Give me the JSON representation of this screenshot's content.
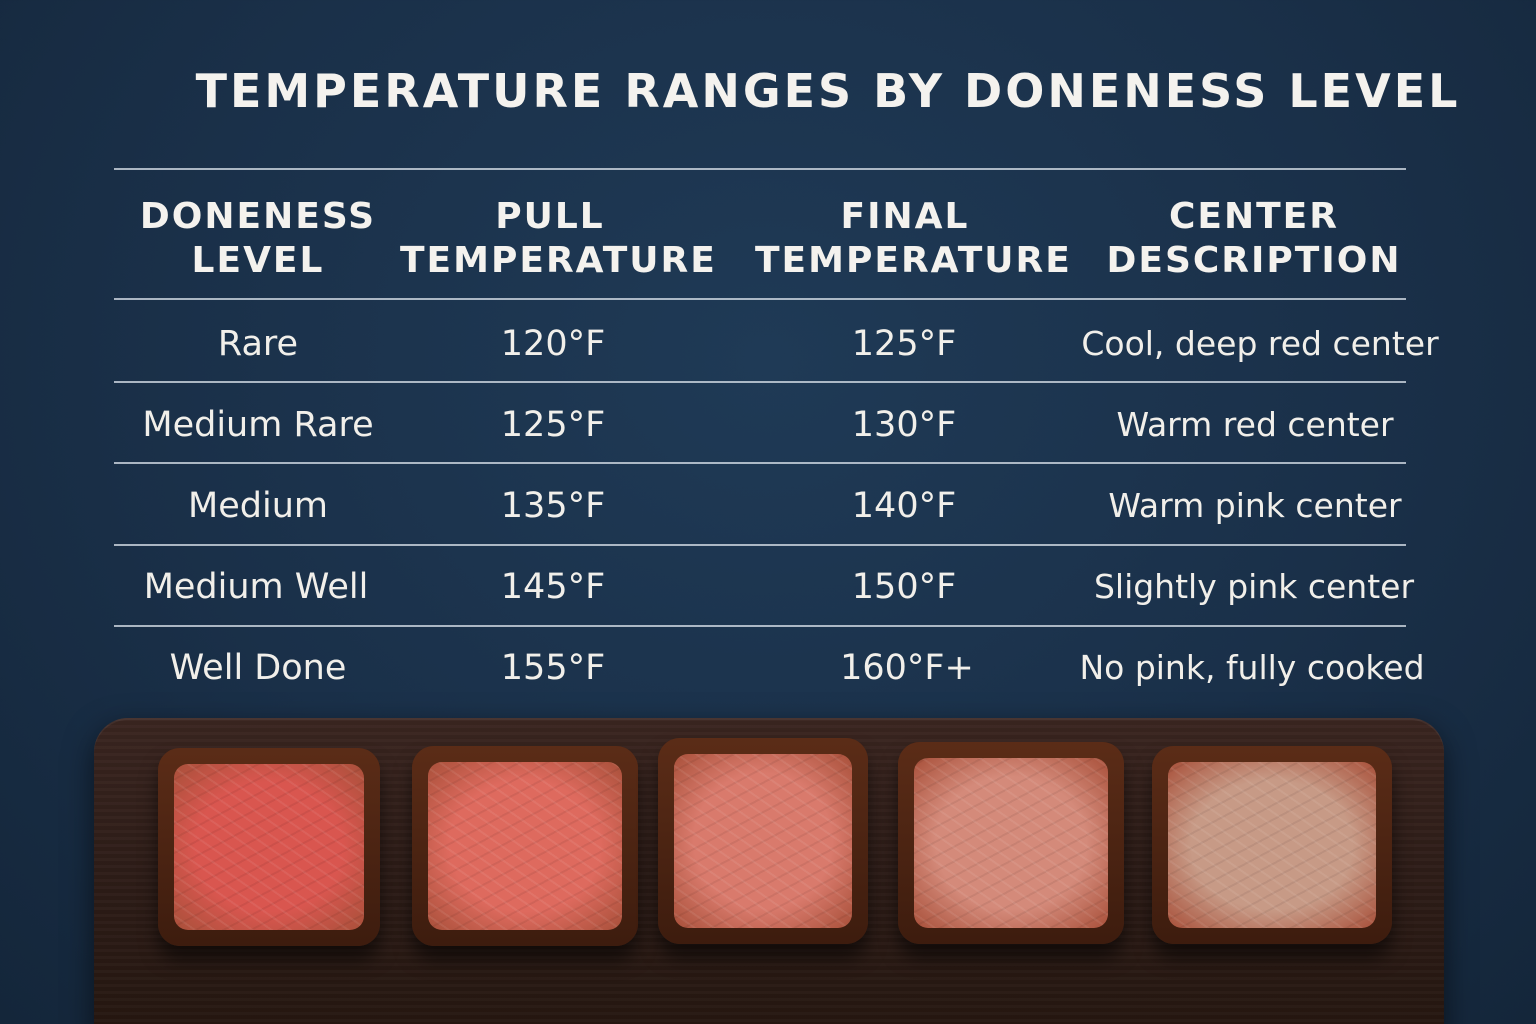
{
  "title": "TEMPERATURE RANGES BY DONENESS LEVEL",
  "table": {
    "headers": [
      [
        "DONENESS",
        "LEVEL"
      ],
      [
        "PULL",
        "TEMPERATURE"
      ],
      [
        "FINAL",
        "TEMPERATURE"
      ],
      [
        "CENTER",
        "DESCRIPTION"
      ]
    ],
    "rows": [
      [
        "Rare",
        "120°F",
        "125°F",
        "Cool, deep red center"
      ],
      [
        "Medium Rare",
        "125°F",
        "130°F",
        "Warm red center"
      ],
      [
        "Medium",
        "135°F",
        "140°F",
        "Warm pink center"
      ],
      [
        "Medium Well",
        "145°F",
        "150°F",
        "Slightly pink center"
      ],
      [
        "Well Done",
        "155°F",
        "160°F+",
        "No pink, fully cooked"
      ]
    ]
  },
  "colors": {
    "background": "#1a3049",
    "text": "#f3f1ec",
    "board": "#2e1d18",
    "steak_centers": [
      "#d9564f",
      "#de6a5e",
      "#d97a6c",
      "#d48a7a",
      "#c79a86"
    ]
  },
  "image": {
    "subject": "five steak cross-sections on a cutting board",
    "steak_count": 5
  }
}
